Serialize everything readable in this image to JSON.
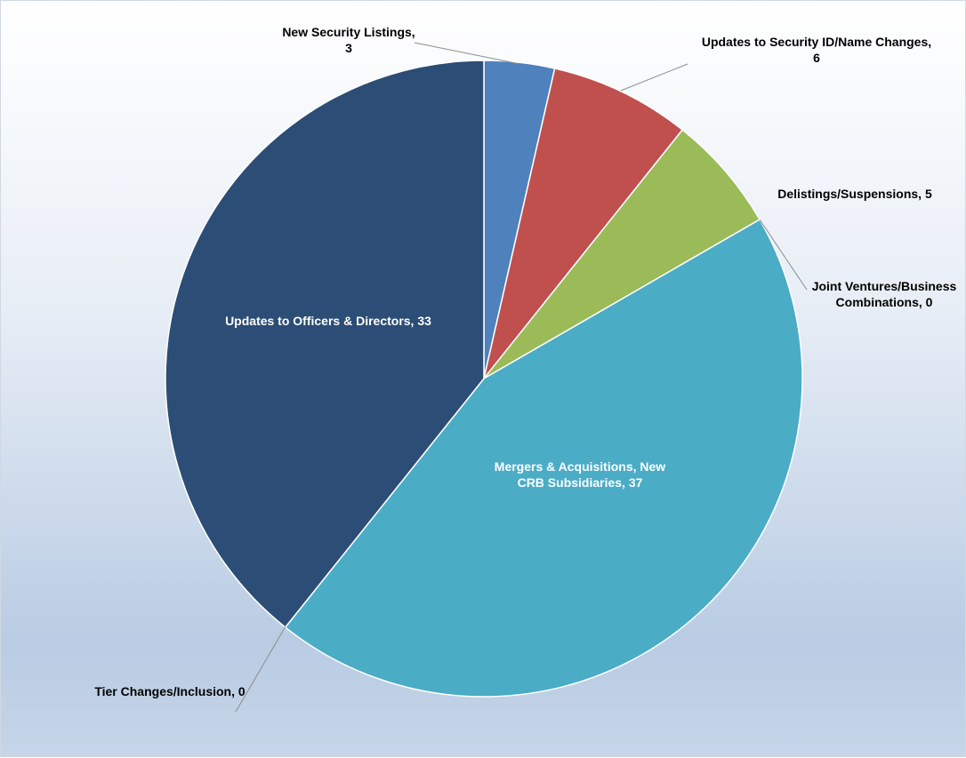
{
  "chart_data": {
    "type": "pie",
    "title": "",
    "slices": [
      {
        "label": "New Security Listings",
        "value": 3,
        "label_text": [
          "New Security Listings,",
          "3"
        ],
        "color": "#4f81bd"
      },
      {
        "label": "Updates to Security ID/Name Changes",
        "value": 6,
        "label_text": [
          "Updates to Security ID/Name Changes,",
          "6"
        ],
        "color": "#c0504d"
      },
      {
        "label": "Delistings/Suspensions",
        "value": 5,
        "label_text": [
          "Delistings/Suspensions, 5"
        ],
        "color": "#9bbb59"
      },
      {
        "label": "Joint Ventures/Business Combinations",
        "value": 0,
        "label_text": [
          "Joint Ventures/Business",
          "Combinations, 0"
        ],
        "color": "#8064a2"
      },
      {
        "label": "Mergers & Acquisitions, New CRB Subsidiaries",
        "value": 37,
        "label_text": [
          "Mergers & Acquisitions, New",
          "CRB Subsidiaries, 37"
        ],
        "color": "#4bacc6"
      },
      {
        "label": "Tier Changes/Inclusion",
        "value": 0,
        "label_text": [
          "Tier Changes/Inclusion, 0"
        ],
        "color": "#f79646"
      },
      {
        "label": "Updates to Officers & Directors",
        "value": 33,
        "label_text": [
          "Updates to Officers & Directors, 33"
        ],
        "color": "#2c4d75"
      }
    ],
    "start_angle": "12 o'clock",
    "direction": "clockwise",
    "legend": "none"
  }
}
